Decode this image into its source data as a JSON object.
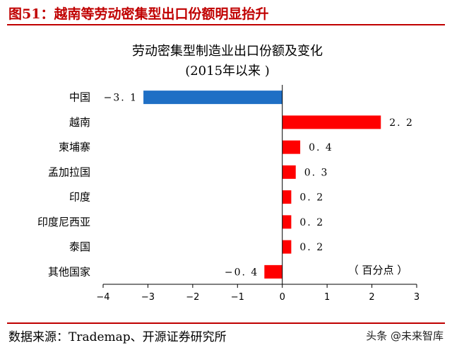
{
  "header": {
    "figure_title": "图51：越南等劳动密集型出口份额明显抬升"
  },
  "footer": {
    "source": "数据来源：Trademap、开源证券研究所",
    "watermark": "头条 @未来智库"
  },
  "chart_data": {
    "type": "bar",
    "orientation": "horizontal",
    "title": "劳动密集型制造业出口份额及变化",
    "subtitle": "(2015年以来 )",
    "unit_note": "（ 百分点 ）",
    "categories": [
      "中国",
      "越南",
      "柬埔寨",
      "孟加拉国",
      "印度",
      "印度尼西亚",
      "泰国",
      "其他国家"
    ],
    "values": [
      -3.1,
      2.2,
      0.4,
      0.3,
      0.2,
      0.2,
      0.2,
      -0.4
    ],
    "value_labels": [
      "−3. 1",
      "2. 2",
      "0. 4",
      "0. 3",
      "0. 2",
      "0. 2",
      "0. 2",
      "−0. 4"
    ],
    "bar_colors": [
      "#1f6fc5",
      "#ff0000",
      "#ff0000",
      "#ff0000",
      "#ff0000",
      "#ff0000",
      "#ff0000",
      "#ff0000"
    ],
    "xlim": [
      -4,
      3
    ],
    "xticks": [
      -4,
      -3,
      -2,
      -1,
      0,
      1,
      2,
      3
    ],
    "xtick_labels": [
      "−4",
      "−3",
      "−2",
      "−1",
      "0",
      "1",
      "2",
      "3"
    ],
    "grid": false,
    "legend": "none"
  }
}
